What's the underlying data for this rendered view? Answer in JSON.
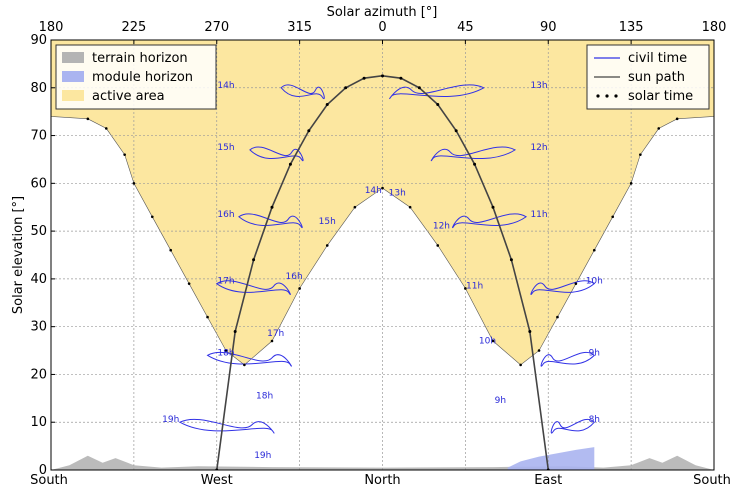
{
  "chart_data": {
    "type": "line",
    "top_axis_label": "Solar azimuth [°]",
    "ylabel": "Solar elevation [°]",
    "ylim": [
      0,
      90
    ],
    "top_ticks": [
      "180",
      "225",
      "270",
      "315",
      "0",
      "45",
      "90",
      "135",
      "180"
    ],
    "bottom_ticks": [
      "South",
      "West",
      "North",
      "East",
      "South"
    ],
    "y_ticks": [
      "0",
      "10",
      "20",
      "30",
      "40",
      "50",
      "60",
      "70",
      "80",
      "90"
    ],
    "legend_left": [
      {
        "label": "terrain horizon",
        "color": "#b4b4b4"
      },
      {
        "label": "module horizon",
        "color": "#aab4f0"
      },
      {
        "label": "active area",
        "color": "#fce7a0"
      }
    ],
    "legend_right": [
      {
        "label": "civil time",
        "color": "#3232e6"
      },
      {
        "label": "sun path",
        "color": "#444444"
      },
      {
        "label": "solar time",
        "color": "#000000"
      }
    ],
    "sun_path": {
      "azimuth": [
        -90,
        -80,
        -70,
        -60,
        -50,
        -40,
        -30,
        -20,
        -10,
        0,
        10,
        20,
        30,
        40,
        50,
        60,
        70,
        80,
        90
      ],
      "elevation": [
        0,
        29,
        44,
        55,
        64,
        71,
        76.5,
        80,
        82,
        82.5,
        82,
        80,
        76.5,
        71,
        64,
        55,
        44,
        29,
        0
      ]
    },
    "active_area_boundary": {
      "azimuth": [
        -180,
        -160,
        -150,
        -140,
        -135,
        -125,
        -115,
        -105,
        -95,
        -85,
        -75,
        -60,
        -45,
        -30,
        -15,
        0,
        15,
        30,
        45,
        60,
        75,
        85,
        95,
        105,
        115,
        125,
        135,
        140,
        150,
        160,
        180
      ],
      "elevation": [
        74,
        73.5,
        71.5,
        66,
        60,
        53,
        46,
        39,
        32,
        25,
        22,
        27,
        38,
        47,
        55,
        59,
        55,
        47,
        38,
        27,
        22,
        25,
        32,
        39,
        46,
        53,
        60,
        66,
        71.5,
        73.5,
        74
      ]
    },
    "terrain_horizon": {
      "azimuth": [
        -180,
        -170,
        -160,
        -152,
        -145,
        -135,
        -120,
        -100,
        -60,
        0,
        60,
        100,
        120,
        135,
        145,
        152,
        160,
        170,
        180
      ],
      "elevation": [
        0,
        1,
        3,
        1.5,
        2.5,
        1,
        0.5,
        0.8,
        0.6,
        0.5,
        0.6,
        0.8,
        0.5,
        1,
        2.5,
        1.5,
        3,
        1,
        0
      ]
    },
    "module_horizon": {
      "azimuth": [
        68,
        75,
        85,
        95,
        105,
        115,
        115,
        68
      ],
      "elevation": [
        0.5,
        1.8,
        2.8,
        3.5,
        4.2,
        4.8,
        0,
        0
      ]
    },
    "analemma_labels": [
      {
        "label": "8h",
        "azimuth": 115,
        "elevation": 10
      },
      {
        "label": "9h",
        "azimuth": 115,
        "elevation": 24
      },
      {
        "label": "10h",
        "azimuth": 115,
        "elevation": 39
      },
      {
        "label": "11h",
        "azimuth": 85,
        "elevation": 53
      },
      {
        "label": "12h",
        "azimuth": 85,
        "elevation": 67
      },
      {
        "label": "13h",
        "azimuth": 85,
        "elevation": 80
      },
      {
        "label": "14h",
        "azimuth": -85,
        "elevation": 80
      },
      {
        "label": "15h",
        "azimuth": -85,
        "elevation": 67
      },
      {
        "label": "16h",
        "azimuth": -85,
        "elevation": 53
      },
      {
        "label": "17h",
        "azimuth": -85,
        "elevation": 39
      },
      {
        "label": "18h",
        "azimuth": -85,
        "elevation": 24
      },
      {
        "label": "19h",
        "azimuth": -115,
        "elevation": 10
      },
      {
        "label": "9h",
        "azimuth": 64,
        "elevation": 14
      },
      {
        "label": "10h",
        "azimuth": 57,
        "elevation": 26.5
      },
      {
        "label": "11h",
        "azimuth": 50,
        "elevation": 38
      },
      {
        "label": "12h",
        "azimuth": 32,
        "elevation": 50.5
      },
      {
        "label": "13h",
        "azimuth": 8,
        "elevation": 57.5
      },
      {
        "label": "14h",
        "azimuth": -5,
        "elevation": 58
      },
      {
        "label": "15h",
        "azimuth": -30,
        "elevation": 51.5
      },
      {
        "label": "16h",
        "azimuth": -48,
        "elevation": 40
      },
      {
        "label": "17h",
        "azimuth": -58,
        "elevation": 28
      },
      {
        "label": "18h",
        "azimuth": -64,
        "elevation": 15
      },
      {
        "label": "19h",
        "azimuth": -65,
        "elevation": 2.5
      }
    ],
    "grid": true,
    "legend_placement": [
      "top-left",
      "top-right"
    ]
  }
}
